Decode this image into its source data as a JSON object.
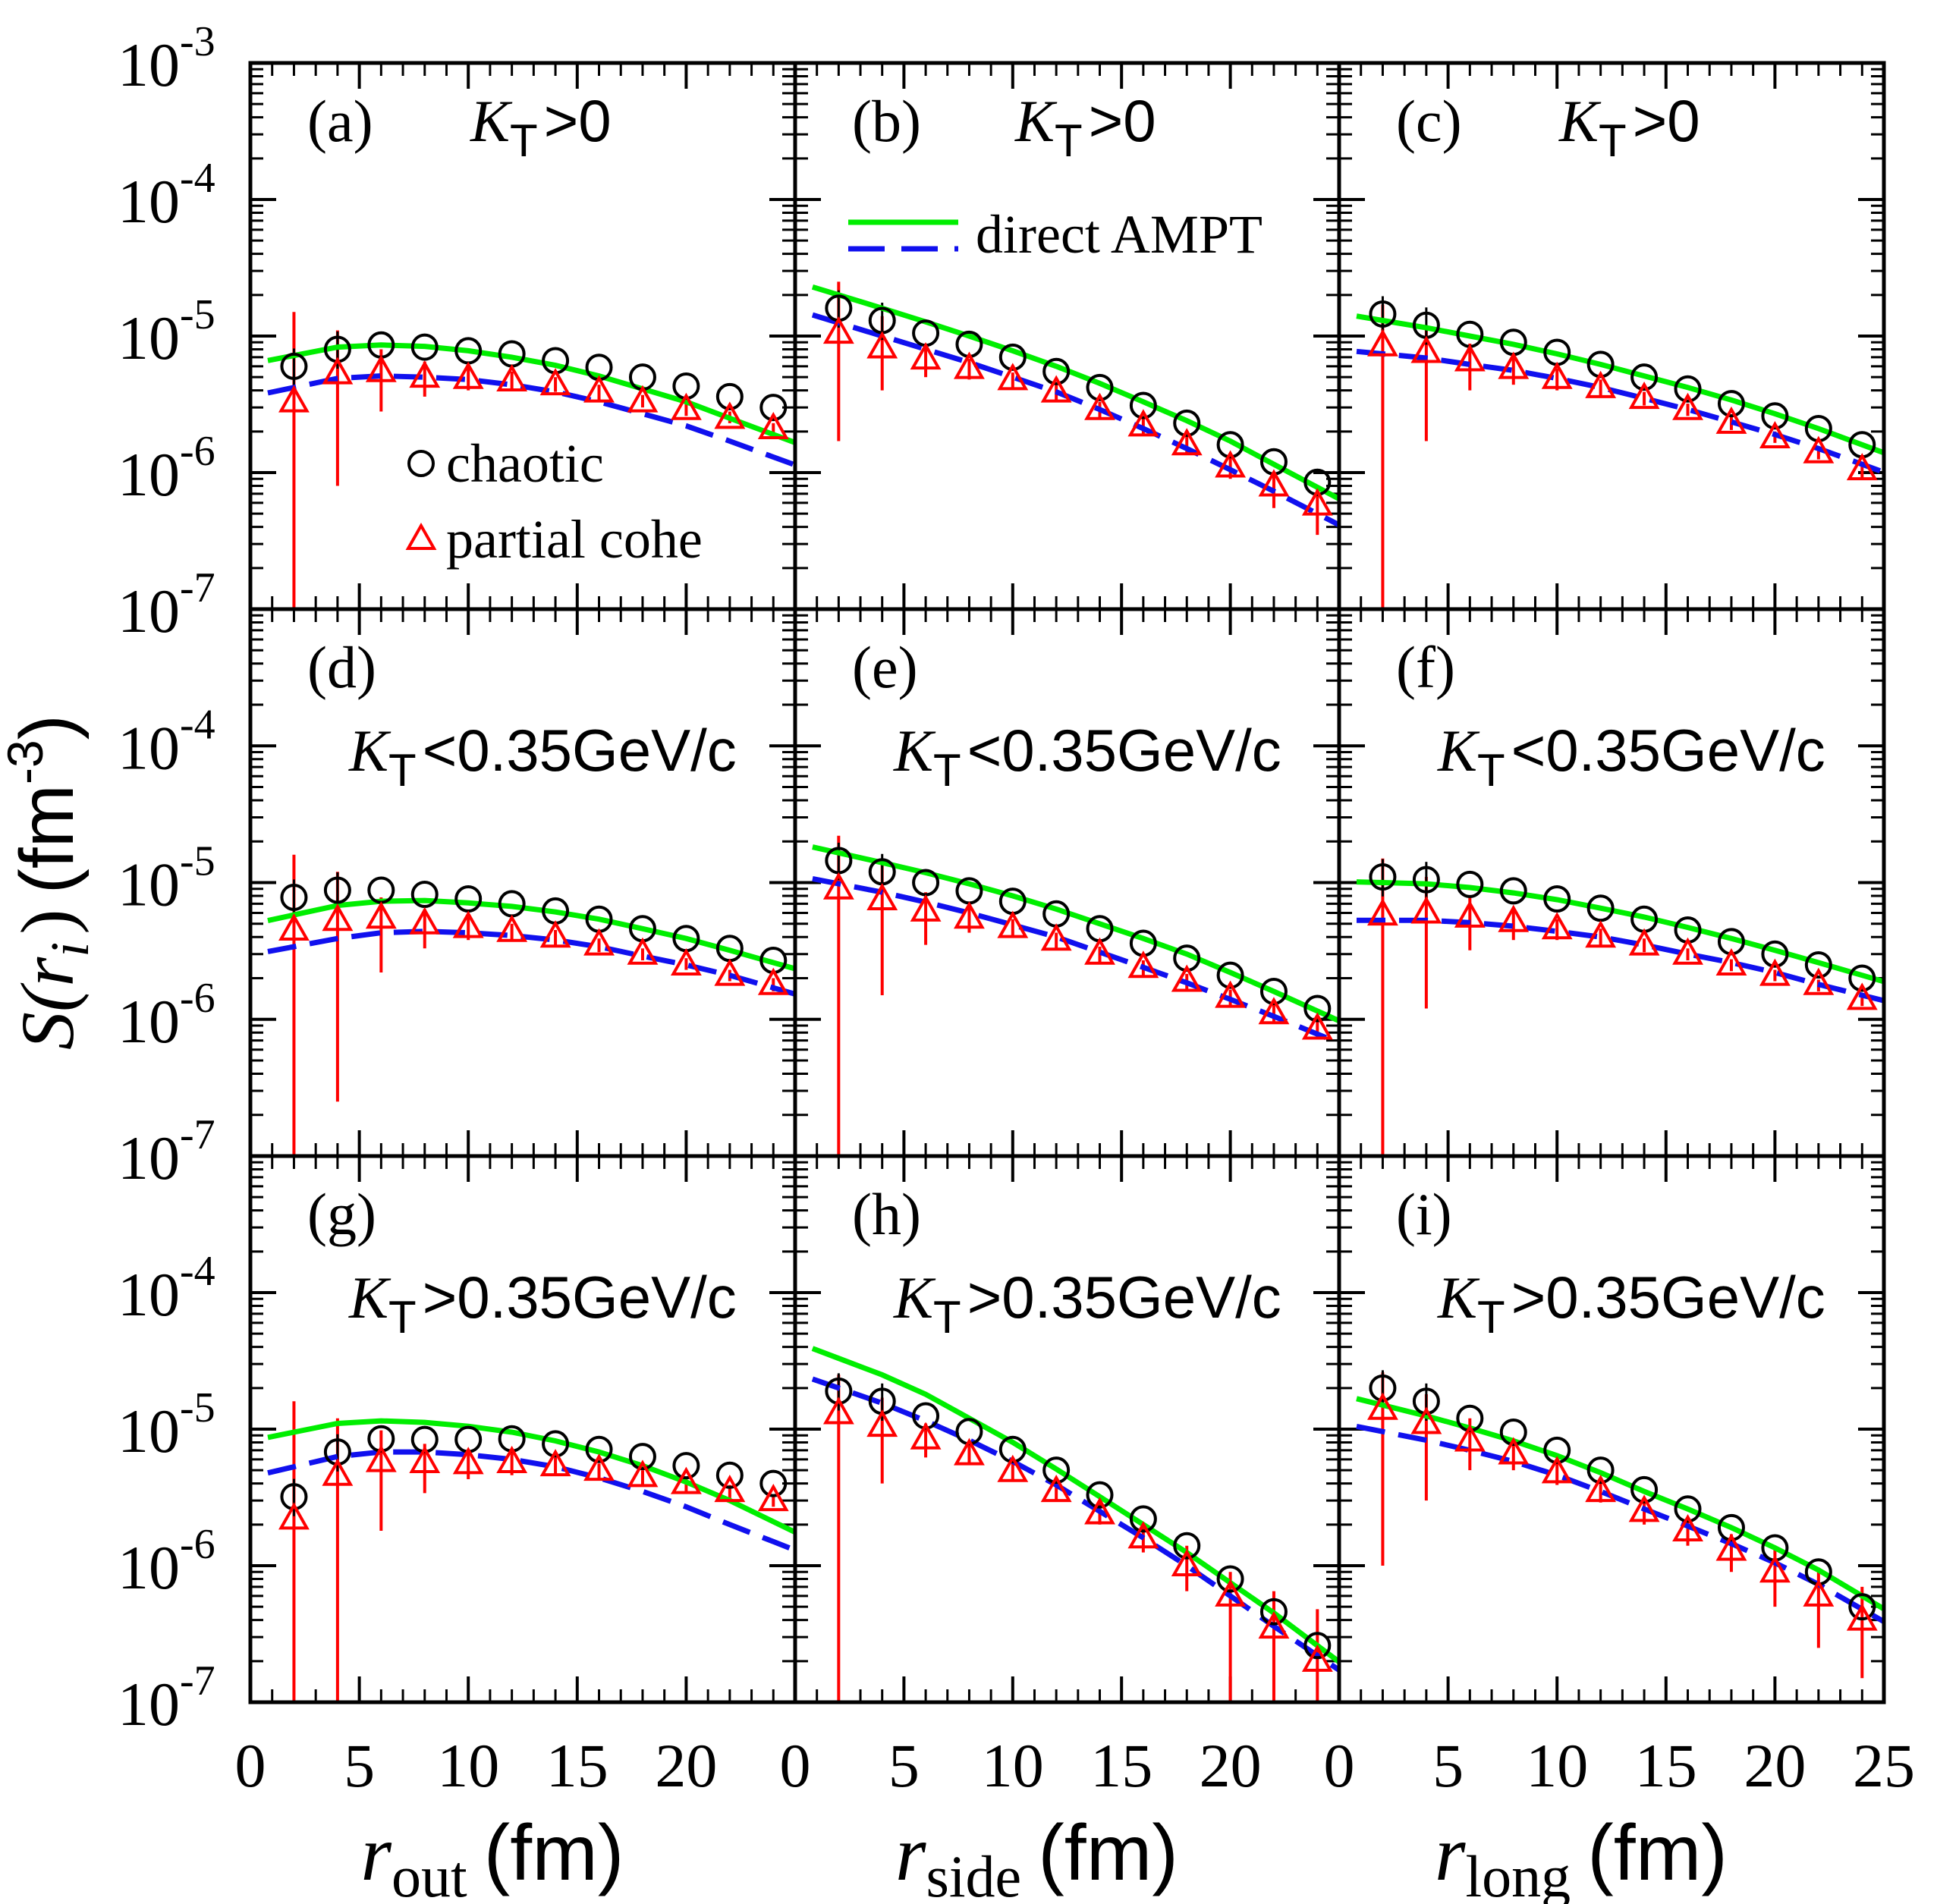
{
  "y_axis": {
    "prefix": "S(",
    "var": "r",
    "sub": "i",
    "close": ")",
    "unit_open": "(fm",
    "unit_exp": "-3",
    "unit_close": ")"
  },
  "y_ticks": [
    {
      "base": "10",
      "exp": "-3"
    },
    {
      "base": "10",
      "exp": "-4"
    },
    {
      "base": "10",
      "exp": "-5"
    },
    {
      "base": "10",
      "exp": "-6"
    },
    {
      "base": "10",
      "exp": "-7"
    }
  ],
  "x_ticks": [
    "0",
    "5",
    "10",
    "15",
    "20",
    "25"
  ],
  "x_axis_labels": [
    {
      "var": "r",
      "sub": "out",
      "unit": "(fm)"
    },
    {
      "var": "r",
      "sub": "side",
      "unit": "(fm)"
    },
    {
      "var": "r",
      "sub": "long",
      "unit": "(fm)"
    }
  ],
  "legend": {
    "chaotic": "chaotic",
    "partial": "partial cohe",
    "ampt": "direct AMPT"
  },
  "colors": {
    "chaotic": "#000000",
    "partial": "#ff0000",
    "green": "#00ee00",
    "blue": "#1010ee"
  },
  "chart_data": {
    "type": "scatter",
    "title": "",
    "xlim": [
      0,
      25
    ],
    "ylim": [
      1e-07,
      0.001
    ],
    "yscale": "log",
    "x": [
      2,
      4,
      6,
      8,
      10,
      12,
      14,
      16,
      18,
      20,
      22,
      24
    ],
    "panels": [
      {
        "id": "(a)",
        "label": "(a)",
        "kt": {
          "sym": "K",
          "sub": "T",
          "cond": ">0"
        },
        "chaotic": [
          6e-06,
          8e-06,
          8.6e-06,
          8.3e-06,
          7.8e-06,
          7.4e-06,
          6.6e-06,
          5.9e-06,
          5e-06,
          4.3e-06,
          3.6e-06,
          3e-06
        ],
        "partial": [
          3.3e-06,
          5.3e-06,
          5.5e-06,
          5e-06,
          4.9e-06,
          4.7e-06,
          4.4e-06,
          3.9e-06,
          3.3e-06,
          2.9e-06,
          2.5e-06,
          2.1e-06
        ],
        "partial_err_lo": [
          1e-07,
          8e-07,
          2.8e-06,
          3.6e-06,
          4e-06,
          4e-06,
          3.9e-06,
          3.4e-06,
          3e-06,
          2.6e-06,
          2.3e-06,
          1.9e-06
        ],
        "partial_err_hi": [
          1.5e-05,
          1.1e-05,
          8e-06,
          6.5e-06,
          6e-06,
          5.5e-06,
          5e-06,
          4.4e-06,
          3.7e-06,
          3.2e-06,
          2.8e-06,
          2.3e-06
        ],
        "ampt_green": [
          7.2e-06,
          8.3e-06,
          8.6e-06,
          8.4e-06,
          7.8e-06,
          7e-06,
          6.1e-06,
          5.1e-06,
          4.1e-06,
          3.3e-06,
          2.5e-06,
          1.9e-06
        ],
        "ampt_blue": [
          4.2e-06,
          4.9e-06,
          5.1e-06,
          5e-06,
          4.8e-06,
          4.4e-06,
          3.9e-06,
          3.3e-06,
          2.7e-06,
          2.2e-06,
          1.7e-06,
          1.3e-06
        ]
      },
      {
        "id": "(b)",
        "label": "(b)",
        "kt": {
          "sym": "K",
          "sub": "T",
          "cond": ">0"
        },
        "chaotic": [
          1.6e-05,
          1.3e-05,
          1.05e-05,
          8.7e-06,
          7e-06,
          5.5e-06,
          4.2e-06,
          3.1e-06,
          2.3e-06,
          1.6e-06,
          1.2e-06,
          8.5e-07
        ],
        "partial": [
          1.05e-05,
          8.2e-06,
          6.8e-06,
          5.8e-06,
          4.8e-06,
          3.9e-06,
          2.9e-06,
          2.2e-06,
          1.6e-06,
          1.1e-06,
          8e-07,
          5.8e-07
        ],
        "partial_err_lo": [
          1.7e-06,
          4e-06,
          5e-06,
          4.8e-06,
          4.2e-06,
          3.4e-06,
          2.5e-06,
          1.9e-06,
          1.35e-06,
          9e-07,
          5.5e-07,
          3.5e-07
        ],
        "partial_err_hi": [
          2.5e-05,
          1.4e-05,
          8.5e-06,
          6.8e-06,
          5.4e-06,
          4.4e-06,
          3.3e-06,
          2.5e-06,
          1.9e-06,
          1.3e-06,
          1e-06,
          7.8e-07
        ],
        "ampt_green": [
          2e-05,
          1.6e-05,
          1.27e-05,
          1e-05,
          7.8e-06,
          6e-06,
          4.5e-06,
          3.3e-06,
          2.4e-06,
          1.7e-06,
          1.15e-06,
          7.8e-07
        ],
        "ampt_blue": [
          1.25e-05,
          1e-05,
          8e-06,
          6.4e-06,
          5e-06,
          3.9e-06,
          2.9e-06,
          2.1e-06,
          1.5e-06,
          1.05e-06,
          7.3e-07,
          5e-07
        ]
      },
      {
        "id": "(c)",
        "label": "(c)",
        "kt": {
          "sym": "K",
          "sub": "T",
          "cond": ">0"
        },
        "chaotic": [
          1.45e-05,
          1.2e-05,
          1.03e-05,
          9e-06,
          7.6e-06,
          6.2e-06,
          5e-06,
          4.1e-06,
          3.2e-06,
          2.6e-06,
          2.1e-06,
          1.6e-06
        ],
        "partial": [
          8.5e-06,
          7.6e-06,
          6.6e-06,
          5.8e-06,
          4.9e-06,
          4.2e-06,
          3.5e-06,
          2.9e-06,
          2.3e-06,
          1.8e-06,
          1.4e-06,
          1.05e-06
        ],
        "partial_err_lo": [
          1e-07,
          1.7e-06,
          4e-06,
          4.4e-06,
          4e-06,
          3.6e-06,
          3.1e-06,
          2.6e-06,
          2.05e-06,
          1.65e-06,
          1.25e-06,
          9e-07
        ],
        "partial_err_hi": [
          1.7e-05,
          1.2e-05,
          8.8e-06,
          7.2e-06,
          5.8e-06,
          4.8e-06,
          3.9e-06,
          3.2e-06,
          2.6e-06,
          2e-06,
          1.55e-06,
          1.2e-06
        ],
        "ampt_green": [
          1.3e-05,
          1.15e-05,
          1e-05,
          8.7e-06,
          7.4e-06,
          6.2e-06,
          5.1e-06,
          4.2e-06,
          3.4e-06,
          2.7e-06,
          2.1e-06,
          1.6e-06
        ],
        "ampt_blue": [
          7.4e-06,
          6.9e-06,
          6.2e-06,
          5.6e-06,
          4.9e-06,
          4.2e-06,
          3.5e-06,
          2.9e-06,
          2.35e-06,
          1.9e-06,
          1.5e-06,
          1.15e-06
        ]
      },
      {
        "id": "(d)",
        "label": "(d)",
        "kt": {
          "sym": "K",
          "sub": "T",
          "cond": "<0.35GeV/c"
        },
        "chaotic": [
          7.8e-06,
          8.8e-06,
          8.8e-06,
          8.2e-06,
          7.6e-06,
          7e-06,
          6.2e-06,
          5.4e-06,
          4.6e-06,
          3.9e-06,
          3.3e-06,
          2.7e-06
        ],
        "partial": [
          4.5e-06,
          5.3e-06,
          5.5e-06,
          5e-06,
          4.7e-06,
          4.4e-06,
          4e-06,
          3.5e-06,
          3e-06,
          2.5e-06,
          2.1e-06,
          1.8e-06
        ],
        "partial_err_lo": [
          1e-07,
          2.5e-07,
          2.2e-06,
          3.3e-06,
          3.8e-06,
          3.7e-06,
          3.5e-06,
          3.1e-06,
          2.7e-06,
          2.3e-06,
          1.9e-06,
          1.6e-06
        ],
        "partial_err_hi": [
          1.6e-05,
          1.2e-05,
          7.8e-06,
          6.4e-06,
          5.6e-06,
          5e-06,
          4.5e-06,
          3.9e-06,
          3.3e-06,
          2.8e-06,
          2.3e-06,
          2e-06
        ],
        "ampt_green": [
          5.8e-06,
          6.8e-06,
          7.3e-06,
          7.4e-06,
          7.1e-06,
          6.7e-06,
          6.1e-06,
          5.4e-06,
          4.6e-06,
          3.9e-06,
          3.2e-06,
          2.6e-06
        ],
        "ampt_blue": [
          3.4e-06,
          3.9e-06,
          4.3e-06,
          4.4e-06,
          4.3e-06,
          4.1e-06,
          3.8e-06,
          3.4e-06,
          2.9e-06,
          2.5e-06,
          2.1e-06,
          1.7e-06
        ]
      },
      {
        "id": "(e)",
        "label": "(e)",
        "kt": {
          "sym": "K",
          "sub": "T",
          "cond": "<0.35GeV/c"
        },
        "chaotic": [
          1.45e-05,
          1.2e-05,
          1e-05,
          8.7e-06,
          7.3e-06,
          5.9e-06,
          4.6e-06,
          3.6e-06,
          2.8e-06,
          2.1e-06,
          1.6e-06,
          1.2e-06
        ],
        "partial": [
          9e-06,
          7.5e-06,
          6.2e-06,
          5.5e-06,
          4.7e-06,
          3.8e-06,
          3e-06,
          2.4e-06,
          1.9e-06,
          1.45e-06,
          1.1e-06,
          8.5e-07
        ],
        "partial_err_lo": [
          1e-07,
          1.5e-06,
          3.5e-06,
          4.3e-06,
          4e-06,
          3.3e-06,
          2.6e-06,
          2.1e-06,
          1.6e-06,
          1.25e-06,
          9.5e-07,
          7.2e-07
        ],
        "partial_err_hi": [
          2.2e-05,
          1.4e-05,
          8.5e-06,
          6.7e-06,
          5.4e-06,
          4.3e-06,
          3.4e-06,
          2.7e-06,
          2.15e-06,
          1.65e-06,
          1.3e-06,
          1e-06
        ],
        "ampt_green": [
          1.65e-05,
          1.4e-05,
          1.18e-05,
          9.8e-06,
          8e-06,
          6.4e-06,
          5e-06,
          3.9e-06,
          3e-06,
          2.2e-06,
          1.6e-06,
          1.15e-06
        ],
        "ampt_blue": [
          9.8e-06,
          8.5e-06,
          7.2e-06,
          6e-06,
          4.9e-06,
          4e-06,
          3.1e-06,
          2.4e-06,
          1.85e-06,
          1.4e-06,
          1.05e-06,
          7.8e-07
        ]
      },
      {
        "id": "(f)",
        "label": "(f)",
        "kt": {
          "sym": "K",
          "sub": "T",
          "cond": "<0.35GeV/c"
        },
        "chaotic": [
          1.1e-05,
          1.05e-05,
          9.7e-06,
          8.7e-06,
          7.6e-06,
          6.5e-06,
          5.4e-06,
          4.5e-06,
          3.7e-06,
          3e-06,
          2.5e-06,
          2e-06
        ],
        "partial": [
          5.8e-06,
          6e-06,
          5.6e-06,
          5.2e-06,
          4.6e-06,
          4e-06,
          3.5e-06,
          3e-06,
          2.5e-06,
          2.1e-06,
          1.8e-06,
          1.4e-06
        ],
        "partial_err_lo": [
          1e-07,
          1.2e-06,
          3.2e-06,
          3.8e-06,
          3.8e-06,
          3.5e-06,
          3.1e-06,
          2.7e-06,
          2.25e-06,
          1.9e-06,
          1.6e-06,
          1.25e-06
        ],
        "partial_err_hi": [
          1.5e-05,
          1.1e-05,
          7.8e-06,
          6.4e-06,
          5.4e-06,
          4.6e-06,
          3.9e-06,
          3.3e-06,
          2.75e-06,
          2.3e-06,
          1.95e-06,
          1.55e-06
        ],
        "ampt_green": [
          1e-05,
          9.8e-06,
          9.2e-06,
          8.4e-06,
          7.5e-06,
          6.5e-06,
          5.6e-06,
          4.7e-06,
          3.9e-06,
          3.2e-06,
          2.6e-06,
          2.1e-06
        ],
        "ampt_blue": [
          5.3e-06,
          5.3e-06,
          5.1e-06,
          4.8e-06,
          4.4e-06,
          4e-06,
          3.5e-06,
          3e-06,
          2.6e-06,
          2.2e-06,
          1.8e-06,
          1.5e-06
        ]
      },
      {
        "id": "(g)",
        "label": "(g)",
        "kt": {
          "sym": "K",
          "sub": "T",
          "cond": ">0.35GeV/c"
        },
        "chaotic": [
          3.2e-06,
          6.8e-06,
          8.5e-06,
          8.4e-06,
          8.4e-06,
          8.5e-06,
          7.8e-06,
          7.1e-06,
          6.3e-06,
          5.4e-06,
          4.6e-06,
          4e-06
        ],
        "partial": [
          2.2e-06,
          4.6e-06,
          5.8e-06,
          5.7e-06,
          5.6e-06,
          5.7e-06,
          5.4e-06,
          5e-06,
          4.5e-06,
          4e-06,
          3.5e-06,
          3e-06
        ],
        "partial_err_lo": [
          1e-07,
          1e-07,
          1.8e-06,
          3.4e-06,
          4.3e-06,
          4.6e-06,
          4.6e-06,
          4.3e-06,
          3.9e-06,
          3.5e-06,
          3.1e-06,
          2.7e-06
        ],
        "partial_err_hi": [
          1.6e-05,
          1.2e-05,
          9.8e-06,
          7.8e-06,
          7e-06,
          6.8e-06,
          6.2e-06,
          5.6e-06,
          5e-06,
          4.4e-06,
          3.9e-06,
          3.3e-06
        ],
        "ampt_green": [
          9.5e-06,
          1.1e-05,
          1.15e-05,
          1.12e-05,
          1.05e-05,
          9.5e-06,
          8.2e-06,
          6.8e-06,
          5.4e-06,
          4.1e-06,
          3e-06,
          2.1e-06
        ],
        "ampt_blue": [
          5.3e-06,
          6.3e-06,
          6.8e-06,
          6.8e-06,
          6.5e-06,
          6e-06,
          5.3e-06,
          4.4e-06,
          3.5e-06,
          2.7e-06,
          2e-06,
          1.5e-06
        ]
      },
      {
        "id": "(h)",
        "label": "(h)",
        "kt": {
          "sym": "K",
          "sub": "T",
          "cond": ">0.35GeV/c"
        },
        "chaotic": [
          1.9e-05,
          1.6e-05,
          1.25e-05,
          9.6e-06,
          7.1e-06,
          5e-06,
          3.3e-06,
          2.2e-06,
          1.4e-06,
          8e-07,
          4.6e-07,
          2.6e-07
        ],
        "partial": [
          1.3e-05,
          1.05e-05,
          8.5e-06,
          6.5e-06,
          4.9e-06,
          3.5e-06,
          2.4e-06,
          1.6e-06,
          1e-06,
          6e-07,
          3.5e-07,
          2e-07
        ],
        "partial_err_lo": [
          1e-07,
          4e-06,
          6.2e-06,
          5.5e-06,
          4.2e-06,
          3e-06,
          2e-06,
          1.25e-06,
          6.5e-07,
          1e-07,
          1e-07,
          1e-07
        ],
        "partial_err_hi": [
          2.5e-05,
          1.7e-05,
          1.1e-05,
          7.8e-06,
          5.7e-06,
          4.1e-06,
          2.9e-06,
          2e-06,
          1.4e-06,
          9e-07,
          6.5e-07,
          4.8e-07
        ],
        "ampt_green": [
          3.3e-05,
          2.5e-05,
          1.8e-05,
          1.2e-05,
          8e-06,
          5.1e-06,
          3.2e-06,
          2e-06,
          1.25e-06,
          7.5e-07,
          4.5e-07,
          2.6e-07
        ],
        "ampt_blue": [
          2e-05,
          1.55e-05,
          1.15e-05,
          8.3e-06,
          5.8e-06,
          3.9e-06,
          2.5e-06,
          1.6e-06,
          1e-06,
          6e-07,
          3.6e-07,
          2.2e-07
        ]
      },
      {
        "id": "(i)",
        "label": "(i)",
        "kt": {
          "sym": "K",
          "sub": "T",
          "cond": ">0.35GeV/c"
        },
        "chaotic": [
          2e-05,
          1.6e-05,
          1.2e-05,
          9.5e-06,
          7e-06,
          5e-06,
          3.6e-06,
          2.6e-06,
          1.9e-06,
          1.35e-06,
          9e-07,
          5e-07
        ],
        "partial": [
          1.4e-05,
          1.1e-05,
          8.2e-06,
          6.6e-06,
          4.8e-06,
          3.5e-06,
          2.5e-06,
          1.8e-06,
          1.3e-06,
          9e-07,
          6e-07,
          4e-07
        ],
        "partial_err_lo": [
          1e-06,
          3e-06,
          5e-06,
          5e-06,
          3.9e-06,
          2.9e-06,
          2e-06,
          1.4e-06,
          9e-07,
          5e-07,
          2.5e-07,
          1.5e-07
        ],
        "partial_err_hi": [
          2.6e-05,
          1.8e-05,
          1.2e-05,
          8.5e-06,
          6e-06,
          4.2e-06,
          3e-06,
          2.2e-06,
          1.7e-06,
          1.3e-06,
          9.5e-07,
          7e-07
        ],
        "ampt_green": [
          1.5e-05,
          1.25e-05,
          1.02e-05,
          8.2e-06,
          6.4e-06,
          4.8e-06,
          3.5e-06,
          2.6e-06,
          1.9e-06,
          1.35e-06,
          9.3e-07,
          6e-07
        ],
        "ampt_blue": [
          9.6e-06,
          8.3e-06,
          7e-06,
          5.8e-06,
          4.6e-06,
          3.5e-06,
          2.6e-06,
          1.95e-06,
          1.45e-06,
          1.05e-06,
          7.3e-07,
          4.8e-07
        ]
      }
    ]
  }
}
